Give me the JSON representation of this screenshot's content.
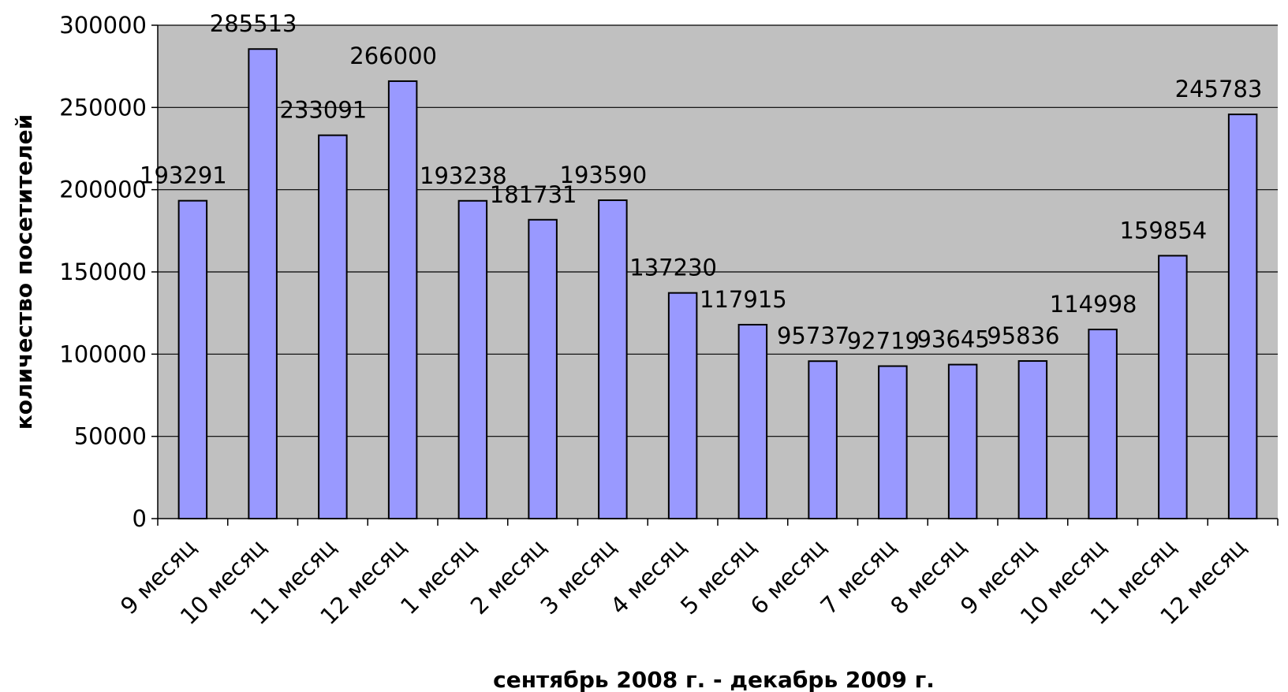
{
  "chart_data": {
    "type": "bar",
    "categories": [
      "9 месяц",
      "10 месяц",
      "11 месяц",
      "12 месяц",
      "1 месяц",
      "2 месяц",
      "3 месяц",
      "4 месяц",
      "5 месяц",
      "6 месяц",
      "7 месяц",
      "8 месяц",
      "9 месяц",
      "10 месяц",
      "11 месяц",
      "12 месяц"
    ],
    "values": [
      193291,
      285513,
      233091,
      266000,
      193238,
      181731,
      193590,
      137230,
      117915,
      95737,
      92719,
      93645,
      95836,
      114998,
      159854,
      245783
    ],
    "xlabel": "сентябрь 2008 г. - декабрь 2009 г.",
    "ylabel": "количество посетителей",
    "ylim": [
      0,
      300000
    ],
    "yticks": [
      0,
      50000,
      100000,
      150000,
      200000,
      250000,
      300000
    ],
    "grid": true,
    "legend": "none",
    "colors": {
      "bar_fill": "#9999ff",
      "bar_stroke": "#000000",
      "plot_background": "#c0c0c0"
    }
  }
}
